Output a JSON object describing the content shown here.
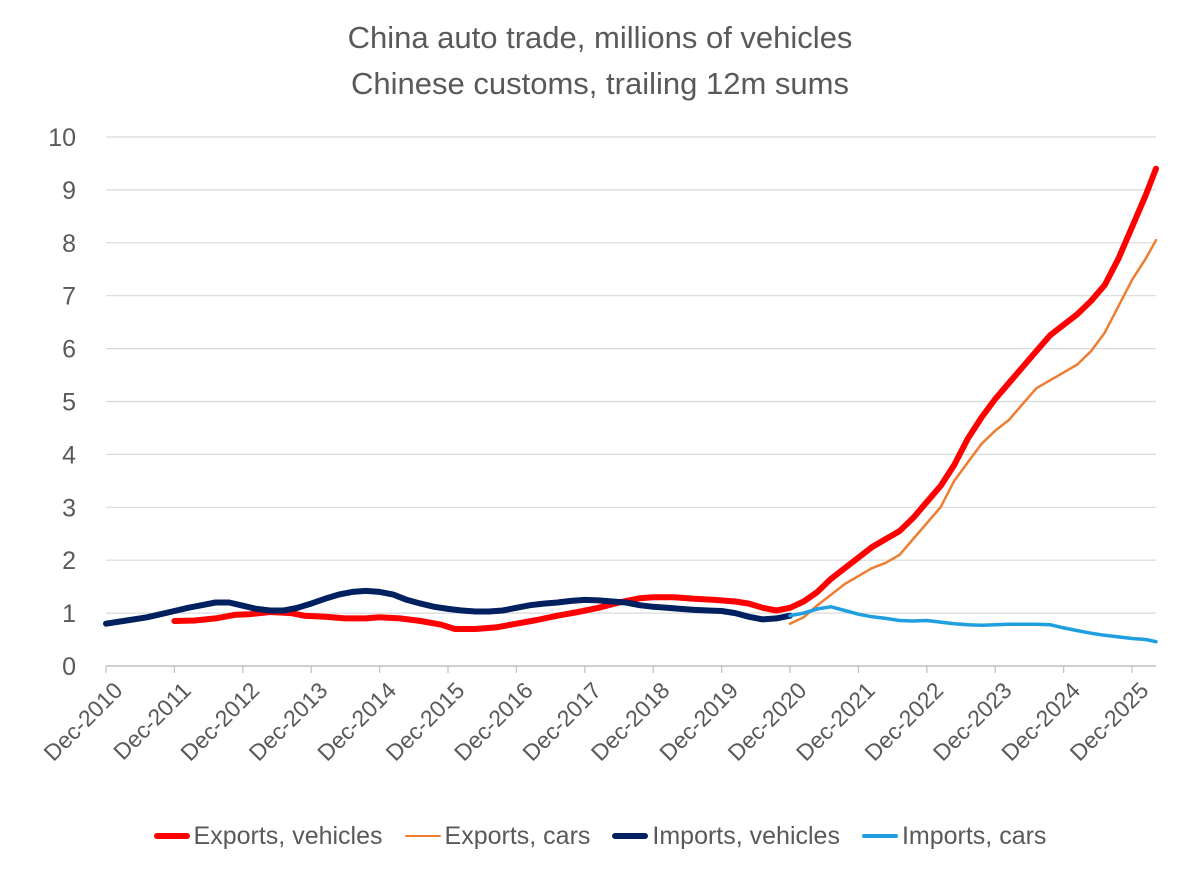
{
  "chart_data": {
    "type": "line",
    "title": "China auto trade, millions of vehicles",
    "subtitle": "Chinese customs, trailing 12m sums",
    "xlabel": "",
    "ylabel": "",
    "ylim": [
      0,
      10
    ],
    "yticks": [
      "0",
      "1",
      "2",
      "3",
      "4",
      "5",
      "6",
      "7",
      "8",
      "9",
      "10"
    ],
    "xticks": [
      "Dec-2010",
      "Dec-2011",
      "Dec-2012",
      "Dec-2013",
      "Dec-2014",
      "Dec-2015",
      "Dec-2016",
      "Dec-2017",
      "Dec-2018",
      "Dec-2019",
      "Dec-2020",
      "Dec-2021",
      "Dec-2022",
      "Dec-2023",
      "Dec-2024",
      "Dec-2025"
    ],
    "x_unit": "years since Dec-2010",
    "grid": true,
    "legend_position": "bottom",
    "series": [
      {
        "name": "Exports, vehicles",
        "color": "#FF0000",
        "width": "thick",
        "points": [
          [
            1.0,
            0.85
          ],
          [
            1.3,
            0.86
          ],
          [
            1.6,
            0.9
          ],
          [
            1.9,
            0.97
          ],
          [
            2.1,
            0.98
          ],
          [
            2.4,
            1.02
          ],
          [
            2.7,
            1.0
          ],
          [
            2.9,
            0.95
          ],
          [
            3.2,
            0.93
          ],
          [
            3.5,
            0.9
          ],
          [
            3.8,
            0.9
          ],
          [
            4.0,
            0.92
          ],
          [
            4.3,
            0.9
          ],
          [
            4.6,
            0.85
          ],
          [
            4.9,
            0.78
          ],
          [
            5.1,
            0.7
          ],
          [
            5.4,
            0.7
          ],
          [
            5.7,
            0.73
          ],
          [
            6.0,
            0.8
          ],
          [
            6.3,
            0.87
          ],
          [
            6.6,
            0.95
          ],
          [
            6.9,
            1.02
          ],
          [
            7.2,
            1.1
          ],
          [
            7.5,
            1.2
          ],
          [
            7.8,
            1.28
          ],
          [
            8.0,
            1.3
          ],
          [
            8.3,
            1.3
          ],
          [
            8.6,
            1.27
          ],
          [
            8.9,
            1.25
          ],
          [
            9.2,
            1.22
          ],
          [
            9.4,
            1.18
          ],
          [
            9.6,
            1.1
          ],
          [
            9.8,
            1.05
          ],
          [
            10.0,
            1.1
          ],
          [
            10.2,
            1.22
          ],
          [
            10.4,
            1.4
          ],
          [
            10.6,
            1.65
          ],
          [
            10.8,
            1.85
          ],
          [
            11.0,
            2.05
          ],
          [
            11.2,
            2.25
          ],
          [
            11.4,
            2.4
          ],
          [
            11.6,
            2.55
          ],
          [
            11.8,
            2.8
          ],
          [
            12.0,
            3.1
          ],
          [
            12.2,
            3.4
          ],
          [
            12.4,
            3.8
          ],
          [
            12.6,
            4.3
          ],
          [
            12.8,
            4.7
          ],
          [
            13.0,
            5.05
          ],
          [
            13.2,
            5.35
          ],
          [
            13.4,
            5.65
          ],
          [
            13.6,
            5.95
          ],
          [
            13.8,
            6.25
          ],
          [
            14.0,
            6.45
          ],
          [
            14.2,
            6.65
          ],
          [
            14.4,
            6.9
          ],
          [
            14.6,
            7.2
          ],
          [
            14.8,
            7.7
          ],
          [
            15.0,
            8.3
          ],
          [
            15.2,
            8.9
          ],
          [
            15.35,
            9.4
          ]
        ]
      },
      {
        "name": "Exports, cars",
        "color": "#ED7D31",
        "width": "thin",
        "points": [
          [
            10.0,
            0.8
          ],
          [
            10.2,
            0.92
          ],
          [
            10.4,
            1.15
          ],
          [
            10.6,
            1.35
          ],
          [
            10.8,
            1.55
          ],
          [
            11.0,
            1.7
          ],
          [
            11.2,
            1.85
          ],
          [
            11.4,
            1.95
          ],
          [
            11.6,
            2.1
          ],
          [
            11.8,
            2.4
          ],
          [
            12.0,
            2.7
          ],
          [
            12.2,
            3.0
          ],
          [
            12.4,
            3.5
          ],
          [
            12.6,
            3.85
          ],
          [
            12.8,
            4.2
          ],
          [
            13.0,
            4.45
          ],
          [
            13.2,
            4.65
          ],
          [
            13.4,
            4.95
          ],
          [
            13.6,
            5.25
          ],
          [
            13.8,
            5.4
          ],
          [
            14.0,
            5.55
          ],
          [
            14.2,
            5.7
          ],
          [
            14.4,
            5.95
          ],
          [
            14.6,
            6.3
          ],
          [
            14.8,
            6.8
          ],
          [
            15.0,
            7.3
          ],
          [
            15.2,
            7.7
          ],
          [
            15.35,
            8.05
          ]
        ]
      },
      {
        "name": "Imports, vehicles",
        "color": "#002060",
        "width": "thick",
        "points": [
          [
            0.0,
            0.8
          ],
          [
            0.3,
            0.86
          ],
          [
            0.6,
            0.92
          ],
          [
            0.8,
            0.98
          ],
          [
            1.0,
            1.04
          ],
          [
            1.2,
            1.1
          ],
          [
            1.4,
            1.15
          ],
          [
            1.6,
            1.2
          ],
          [
            1.8,
            1.2
          ],
          [
            2.0,
            1.14
          ],
          [
            2.2,
            1.08
          ],
          [
            2.4,
            1.05
          ],
          [
            2.6,
            1.05
          ],
          [
            2.8,
            1.1
          ],
          [
            3.0,
            1.18
          ],
          [
            3.2,
            1.27
          ],
          [
            3.4,
            1.35
          ],
          [
            3.6,
            1.4
          ],
          [
            3.8,
            1.42
          ],
          [
            4.0,
            1.4
          ],
          [
            4.2,
            1.35
          ],
          [
            4.4,
            1.25
          ],
          [
            4.6,
            1.18
          ],
          [
            4.8,
            1.12
          ],
          [
            5.0,
            1.08
          ],
          [
            5.2,
            1.05
          ],
          [
            5.4,
            1.03
          ],
          [
            5.6,
            1.03
          ],
          [
            5.8,
            1.05
          ],
          [
            6.0,
            1.1
          ],
          [
            6.2,
            1.15
          ],
          [
            6.4,
            1.18
          ],
          [
            6.6,
            1.2
          ],
          [
            6.8,
            1.23
          ],
          [
            7.0,
            1.25
          ],
          [
            7.2,
            1.24
          ],
          [
            7.4,
            1.22
          ],
          [
            7.6,
            1.2
          ],
          [
            7.8,
            1.15
          ],
          [
            8.0,
            1.12
          ],
          [
            8.2,
            1.1
          ],
          [
            8.4,
            1.08
          ],
          [
            8.6,
            1.06
          ],
          [
            8.8,
            1.05
          ],
          [
            9.0,
            1.04
          ],
          [
            9.2,
            1.0
          ],
          [
            9.4,
            0.93
          ],
          [
            9.6,
            0.88
          ],
          [
            9.8,
            0.9
          ],
          [
            10.0,
            0.95
          ]
        ]
      },
      {
        "name": "Imports, cars",
        "color": "#1F9FE0",
        "width": "medium",
        "points": [
          [
            10.0,
            0.95
          ],
          [
            10.2,
            1.0
          ],
          [
            10.4,
            1.08
          ],
          [
            10.6,
            1.12
          ],
          [
            10.8,
            1.05
          ],
          [
            11.0,
            0.98
          ],
          [
            11.2,
            0.93
          ],
          [
            11.4,
            0.9
          ],
          [
            11.6,
            0.86
          ],
          [
            11.8,
            0.85
          ],
          [
            12.0,
            0.86
          ],
          [
            12.2,
            0.83
          ],
          [
            12.4,
            0.8
          ],
          [
            12.6,
            0.78
          ],
          [
            12.8,
            0.77
          ],
          [
            13.0,
            0.78
          ],
          [
            13.2,
            0.79
          ],
          [
            13.4,
            0.79
          ],
          [
            13.6,
            0.79
          ],
          [
            13.8,
            0.78
          ],
          [
            14.0,
            0.72
          ],
          [
            14.2,
            0.67
          ],
          [
            14.4,
            0.62
          ],
          [
            14.6,
            0.58
          ],
          [
            14.8,
            0.55
          ],
          [
            15.0,
            0.52
          ],
          [
            15.2,
            0.5
          ],
          [
            15.35,
            0.46
          ]
        ]
      }
    ]
  }
}
